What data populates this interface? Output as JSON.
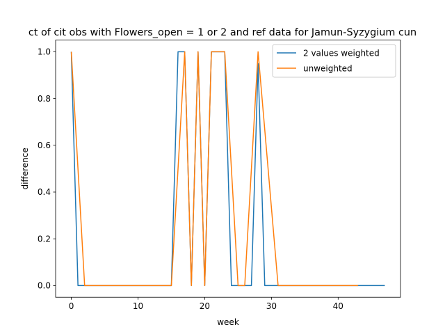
{
  "chart_data": {
    "type": "line",
    "title": "ct of cit obs with Flowers_open = 1 or 2 and ref data for Jamun-Syzygium cun",
    "xlabel": "week",
    "ylabel": "difference",
    "xlim": [
      -2.35,
      49.35
    ],
    "ylim": [
      -0.05,
      1.05
    ],
    "xticks": [
      0,
      10,
      20,
      30,
      40
    ],
    "yticks": [
      0.0,
      0.2,
      0.4,
      0.6,
      0.8,
      1.0
    ],
    "ytick_labels": [
      "0.0",
      "0.2",
      "0.4",
      "0.6",
      "0.8",
      "1.0"
    ],
    "grid": false,
    "legend_position": "upper right",
    "series": [
      {
        "name": "2 values weighted",
        "color": "#1f77b4",
        "x": [
          0,
          1,
          2,
          3,
          4,
          5,
          6,
          7,
          8,
          9,
          10,
          11,
          12,
          13,
          14,
          15,
          16,
          17,
          18,
          19,
          20,
          21,
          22,
          23,
          24,
          25,
          26,
          27,
          28,
          29,
          30,
          31,
          32,
          33,
          34,
          35,
          36,
          37,
          38,
          39,
          40,
          41,
          42,
          43,
          44,
          45,
          46,
          47
        ],
        "y": [
          1,
          0,
          0,
          0,
          0,
          0,
          0,
          0,
          0,
          0,
          0,
          0,
          0,
          0,
          0,
          0,
          1,
          1,
          0,
          1,
          0,
          1,
          1,
          1,
          0,
          0,
          0,
          0,
          0.95,
          0,
          0,
          0,
          0,
          0,
          0,
          0,
          0,
          0,
          0,
          0,
          0,
          0,
          0,
          0,
          0,
          0,
          0,
          0
        ]
      },
      {
        "name": "unweighted",
        "color": "#ff7f0e",
        "x": [
          0,
          1,
          2,
          3,
          4,
          5,
          6,
          7,
          8,
          9,
          10,
          11,
          12,
          13,
          14,
          15,
          16,
          17,
          18,
          19,
          20,
          21,
          22,
          23,
          24,
          25,
          26,
          27,
          28,
          29,
          30,
          31,
          32,
          33,
          34,
          35,
          36,
          37,
          38,
          39,
          40,
          41,
          42,
          43
        ],
        "y": [
          1,
          0.5,
          0,
          0,
          0,
          0,
          0,
          0,
          0,
          0,
          0,
          0,
          0,
          0,
          0,
          0,
          0.5,
          1,
          0,
          1,
          0,
          1,
          1,
          1,
          0.5,
          0,
          0,
          0.5,
          1,
          0.667,
          0.333,
          0,
          0,
          0,
          0,
          0,
          0,
          0,
          0,
          0,
          0,
          0,
          0,
          0
        ]
      }
    ]
  }
}
